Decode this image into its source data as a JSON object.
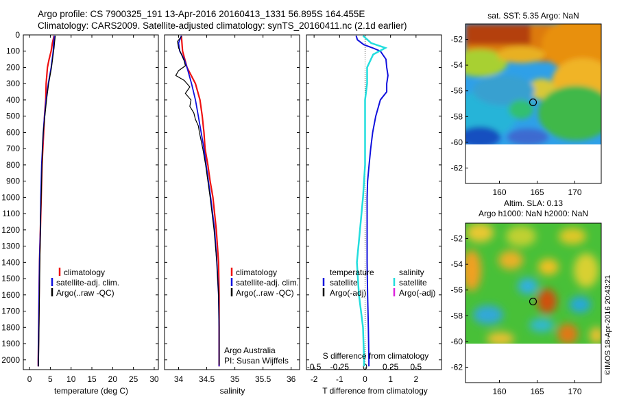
{
  "header": {
    "line1": "Argo profile: CS 7900325_191 13-Apr-2016 20160413_1331 56.895S 164.455E",
    "line2": "Climatology: CARS2009. Satellite-adjusted climatology: synTS_20160411.nc (2.1d earlier)"
  },
  "credit": "©IMOS 18-Apr-2016 20:43:21",
  "colors": {
    "climatology": "#ee1111",
    "satellite": "#1010dd",
    "argo": "#000000",
    "satellite_salinity": "#22dddd",
    "argo_adj_salinity": "#dd22dd"
  },
  "chart_data": [
    {
      "type": "line",
      "name": "temperature-profile",
      "xlabel": "temperature (deg C)",
      "ylabel": "",
      "xlim": [
        -1.5,
        31
      ],
      "ylim": [
        2060,
        0
      ],
      "xticks": [
        0,
        5,
        10,
        15,
        20,
        25,
        30
      ],
      "yticks": [
        0,
        100,
        200,
        300,
        400,
        500,
        600,
        700,
        800,
        900,
        1000,
        1100,
        1200,
        1300,
        1400,
        1500,
        1600,
        1700,
        1800,
        1900,
        2000
      ],
      "legend": [
        "climatology",
        "satellite-adj. clim.",
        "Argo(..raw -QC)"
      ],
      "series": [
        {
          "name": "climatology",
          "depth": [
            5,
            50,
            100,
            150,
            200,
            300,
            400,
            500,
            600,
            700,
            800,
            1000,
            1200,
            1400,
            1600,
            1800,
            2000,
            2040
          ],
          "values": [
            5.9,
            5.5,
            5.2,
            4.7,
            4.3,
            4.0,
            3.9,
            3.6,
            3.4,
            3.2,
            3.0,
            2.8,
            2.6,
            2.4,
            2.3,
            2.2,
            2.1,
            2.1
          ]
        },
        {
          "name": "satellite-adj. clim.",
          "depth": [
            5,
            50,
            100,
            200,
            300,
            400,
            500,
            600,
            700,
            800,
            1000,
            1200,
            1400,
            1600,
            1800,
            2000,
            2040
          ],
          "values": [
            6.0,
            5.8,
            5.7,
            5.2,
            4.5,
            4.0,
            3.6,
            3.3,
            3.1,
            2.9,
            2.7,
            2.6,
            2.4,
            2.3,
            2.2,
            2.1,
            2.1
          ]
        },
        {
          "name": "Argo(..raw -QC)",
          "depth": [
            5,
            50,
            80,
            120,
            200,
            300,
            400,
            500,
            600,
            700,
            800,
            1000,
            1200,
            1400,
            1600,
            1800,
            2000,
            2040
          ],
          "values": [
            6.2,
            6.0,
            5.9,
            5.7,
            5.3,
            4.6,
            4.1,
            3.7,
            3.3,
            3.1,
            3.0,
            2.8,
            2.6,
            2.5,
            2.4,
            2.3,
            2.2,
            2.2
          ]
        }
      ]
    },
    {
      "type": "line",
      "name": "salinity-profile",
      "xlabel": "salinity",
      "xlim": [
        33.75,
        36.15
      ],
      "ylim": [
        2060,
        0
      ],
      "xticks": [
        34,
        34.5,
        35,
        35.5,
        36
      ],
      "legend": [
        "climatology",
        "satellite-adj. clim.",
        "Argo(..raw -QC)"
      ],
      "note": [
        "Argo Australia",
        "PI: Susan Wijffels"
      ],
      "series": [
        {
          "name": "climatology",
          "depth": [
            5,
            100,
            200,
            300,
            400,
            500,
            600,
            700,
            800,
            900,
            1000,
            1200,
            1400,
            1600,
            1800,
            2000,
            2040
          ],
          "values": [
            34.05,
            34.07,
            34.15,
            34.3,
            34.38,
            34.42,
            34.45,
            34.47,
            34.52,
            34.56,
            34.61,
            34.67,
            34.71,
            34.72,
            34.72,
            34.72,
            34.72
          ]
        },
        {
          "name": "satellite-adj. clim.",
          "depth": [
            5,
            50,
            100,
            150,
            200,
            300,
            400,
            500,
            600,
            700,
            800,
            900,
            1000,
            1200,
            1400,
            1600,
            1800,
            2000,
            2040
          ],
          "values": [
            34.05,
            34.0,
            34.02,
            34.1,
            34.15,
            34.23,
            34.3,
            34.35,
            34.4,
            34.45,
            34.49,
            34.53,
            34.57,
            34.64,
            34.68,
            34.71,
            34.72,
            34.72,
            34.72
          ]
        },
        {
          "name": "Argo(..raw -QC)",
          "depth": [
            10,
            40,
            80,
            120,
            160,
            190,
            220,
            250,
            280,
            320,
            360,
            400,
            440,
            480,
            520,
            560,
            600,
            700,
            800,
            900,
            1000,
            1200,
            1400,
            1600,
            1800,
            2000,
            2030
          ],
          "values": [
            34.05,
            33.98,
            34.0,
            34.05,
            34.1,
            34.12,
            34.0,
            33.95,
            34.1,
            34.2,
            34.12,
            34.22,
            34.2,
            34.27,
            34.3,
            34.35,
            34.37,
            34.43,
            34.48,
            34.52,
            34.56,
            34.63,
            34.68,
            34.71,
            34.72,
            34.72,
            34.72
          ]
        }
      ]
    },
    {
      "type": "line",
      "name": "difference-profile",
      "xlabel": "T difference from climatology",
      "top_xlabel": "S difference from climatology",
      "xlim": [
        -2.3,
        3.0
      ],
      "ylim": [
        2060,
        0
      ],
      "xticks": [
        -2,
        -1,
        0,
        1,
        2
      ],
      "top_xticks": [
        -0.5,
        -0.25,
        0,
        0.25,
        0.5
      ],
      "legend_groups": [
        {
          "title": "temperature",
          "entries": [
            "satellite",
            "Argo(-adj)"
          ]
        },
        {
          "title": "salinity",
          "entries": [
            "satellite",
            "Argo(-adj)"
          ]
        }
      ],
      "series": [
        {
          "name": "temperature satellite",
          "depth": [
            5,
            30,
            60,
            80,
            100,
            150,
            200,
            250,
            300,
            350,
            400,
            500,
            600,
            700,
            800,
            900,
            1000,
            1200,
            1400,
            1600,
            1800,
            2000,
            2040
          ],
          "values": [
            -0.35,
            -0.3,
            -0.05,
            0.3,
            0.6,
            0.82,
            0.85,
            0.9,
            0.85,
            0.85,
            0.6,
            0.42,
            0.3,
            0.22,
            0.16,
            0.1,
            0.08,
            0.08,
            0.08,
            0.1,
            0.13,
            0.15,
            0.15
          ]
        },
        {
          "name": "salinity satellite",
          "depth": [
            5,
            50,
            80,
            120,
            200,
            300,
            400,
            500,
            600,
            700,
            800,
            900,
            1000,
            1200,
            1400,
            1600,
            1800,
            2000,
            2040
          ],
          "values": [
            -0.02,
            0.06,
            0.2,
            0.08,
            0.02,
            0.02,
            0.0,
            0.0,
            0.0,
            0.0,
            0.0,
            -0.01,
            -0.02,
            -0.05,
            -0.08,
            -0.06,
            -0.02,
            -0.01,
            -0.01
          ]
        }
      ]
    },
    {
      "type": "heatmap",
      "name": "sst-map",
      "title": "sat. SST: 5.35 Argo: NaN",
      "xlim": [
        155.5,
        173.5
      ],
      "ylim": [
        -63.2,
        -50.8
      ],
      "xticks": [
        160,
        165,
        170
      ],
      "yticks": [
        -52,
        -54,
        -56,
        -58,
        -60,
        -62
      ],
      "marker": {
        "lon": 164.455,
        "lat": -56.895
      }
    },
    {
      "type": "heatmap",
      "name": "sla-map",
      "title": "Altim. SLA: 0.13",
      "subtitle": "Argo h1000: NaN h2000: NaN",
      "xlim": [
        155.5,
        173.5
      ],
      "ylim": [
        -63.2,
        -50.8
      ],
      "xticks": [
        160,
        165,
        170
      ],
      "yticks": [
        -52,
        -54,
        -56,
        -58,
        -60,
        -62
      ],
      "marker": {
        "lon": 164.455,
        "lat": -56.895
      }
    }
  ]
}
